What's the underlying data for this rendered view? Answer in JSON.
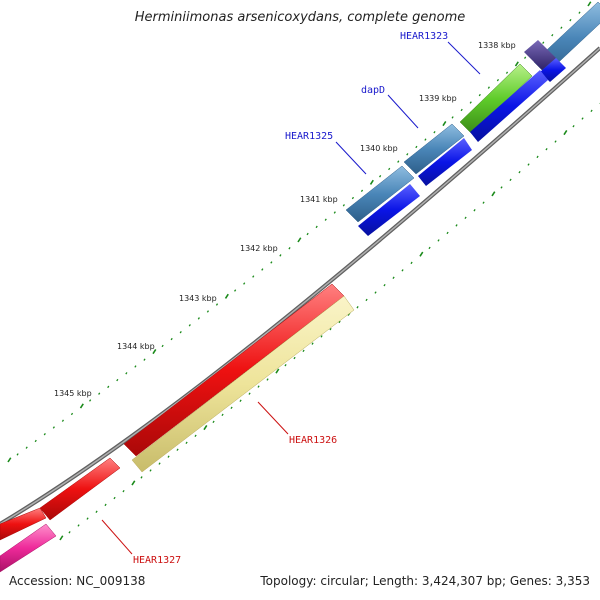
{
  "title": "Herminiimonas arsenicoxydans, complete genome",
  "footer": {
    "accession": "Accession: NC_009138",
    "summary": "Topology: circular; Length: 3,424,307 bp; Genes: 3,353"
  },
  "colors": {
    "backbone": "#808080",
    "tick": "#1a8a1a",
    "steelblue": "#4a86b8",
    "blue": "#0a14e6",
    "green": "#5fcc2a",
    "purple": "#4a3a8a",
    "red": "#ee1111",
    "yellow": "#eee49a",
    "magenta": "#ee2a9a",
    "label_blue": "#1a1acc",
    "label_red": "#cc1111"
  },
  "kbp_labels": [
    "1338 kbp",
    "1339 kbp",
    "1340 kbp",
    "1341 kbp",
    "1342 kbp",
    "1343 kbp",
    "1344 kbp",
    "1345 kbp"
  ],
  "gene_labels": [
    {
      "text": "HEAR1323",
      "color": "label_blue"
    },
    {
      "text": "dapD",
      "color": "label_blue"
    },
    {
      "text": "HEAR1325",
      "color": "label_blue"
    },
    {
      "text": "HEAR1326",
      "color": "label_red"
    },
    {
      "text": "HEAR1327",
      "color": "label_red"
    }
  ]
}
